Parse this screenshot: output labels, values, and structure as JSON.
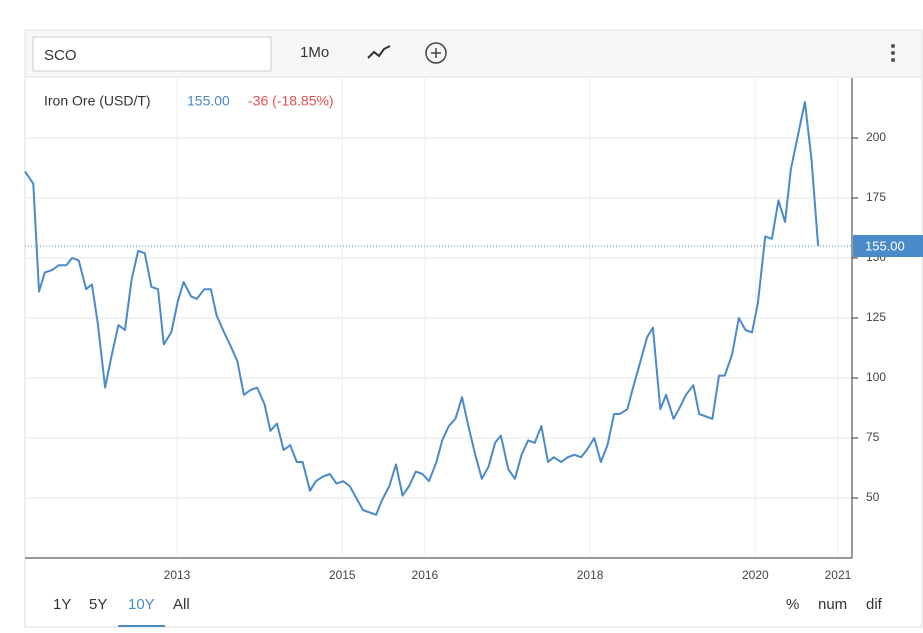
{
  "toolbar": {
    "symbol": "SCO",
    "interval": "1Mo"
  },
  "ranges": [
    "1Y",
    "5Y",
    "10Y",
    "All"
  ],
  "active_range": 2,
  "modes": [
    "%",
    "num",
    "dif"
  ],
  "chart_data": {
    "type": "line",
    "title": "Iron Ore (USD/T)",
    "last_value": "155.00",
    "change": "-36 (-18.85%)",
    "reference_line": {
      "value": 155,
      "label": "155.00"
    },
    "xlim": [
      2011.16,
      2021.17
    ],
    "xticks": [
      2013,
      2015,
      2016,
      2018,
      2020,
      2021
    ],
    "ylim": [
      25,
      225
    ],
    "yticks": [
      50,
      75,
      100,
      125,
      150,
      175,
      200
    ],
    "grid": true,
    "series": [
      {
        "name": "Iron Ore (USD/T)",
        "color": "#4a8ac9",
        "x": [
          2011.16,
          2011.26,
          2011.33,
          2011.4,
          2011.49,
          2011.57,
          2011.66,
          2011.73,
          2011.81,
          2011.9,
          2011.97,
          2012.04,
          2012.13,
          2012.2,
          2012.29,
          2012.37,
          2012.45,
          2012.53,
          2012.61,
          2012.69,
          2012.77,
          2012.84,
          2012.93,
          2013.01,
          2013.08,
          2013.17,
          2013.24,
          2013.33,
          2013.41,
          2013.48,
          2013.57,
          2013.64,
          2013.73,
          2013.81,
          2013.89,
          2013.97,
          2014.06,
          2014.13,
          2014.21,
          2014.29,
          2014.37,
          2014.45,
          2014.52,
          2014.61,
          2014.68,
          2014.77,
          2014.85,
          2014.93,
          2015.01,
          2015.09,
          2015.17,
          2015.25,
          2015.41,
          2015.48,
          2015.57,
          2015.65,
          2015.73,
          2015.81,
          2015.89,
          2015.97,
          2016.05,
          2016.14,
          2016.21,
          2016.29,
          2016.37,
          2016.45,
          2016.52,
          2016.61,
          2016.69,
          2016.77,
          2016.85,
          2016.92,
          2017.01,
          2017.09,
          2017.17,
          2017.25,
          2017.33,
          2017.41,
          2017.49,
          2017.56,
          2017.65,
          2017.73,
          2017.81,
          2017.89,
          2017.96,
          2018.05,
          2018.13,
          2018.21,
          2018.29,
          2018.36,
          2018.45,
          2018.52,
          2018.61,
          2018.69,
          2018.76,
          2018.85,
          2018.92,
          2019.01,
          2019.09,
          2019.16,
          2019.25,
          2019.32,
          2019.48,
          2019.56,
          2019.63,
          2019.72,
          2019.8,
          2019.88,
          2019.96,
          2020.03,
          2020.12,
          2020.2,
          2020.28,
          2020.36,
          2020.43,
          2020.6,
          2020.68,
          2020.76
        ],
        "values": [
          186,
          181,
          136,
          144,
          145,
          147,
          147,
          150,
          149,
          137,
          139,
          123,
          96,
          108,
          122,
          120,
          141,
          153,
          152,
          138,
          137,
          114,
          119,
          132,
          140,
          134,
          133,
          137,
          137,
          126,
          119,
          114,
          107,
          93,
          95,
          96,
          89,
          78,
          81,
          70,
          72,
          65,
          65,
          53,
          57,
          59,
          60,
          56,
          57,
          55,
          50,
          45,
          43,
          49,
          55,
          64,
          51,
          55,
          61,
          60,
          57,
          65,
          74,
          80,
          83,
          92,
          81,
          68,
          58,
          63,
          73,
          76,
          62,
          58,
          68,
          74,
          73,
          80,
          65,
          67,
          65,
          67,
          68,
          67,
          70,
          75,
          65,
          72,
          85,
          85,
          87,
          96,
          107,
          117,
          121,
          87,
          93,
          83,
          88,
          93,
          97,
          85,
          83,
          101,
          101,
          110,
          125,
          120,
          119,
          131,
          159,
          158,
          174,
          165,
          187,
          215,
          191,
          155
        ]
      }
    ]
  }
}
